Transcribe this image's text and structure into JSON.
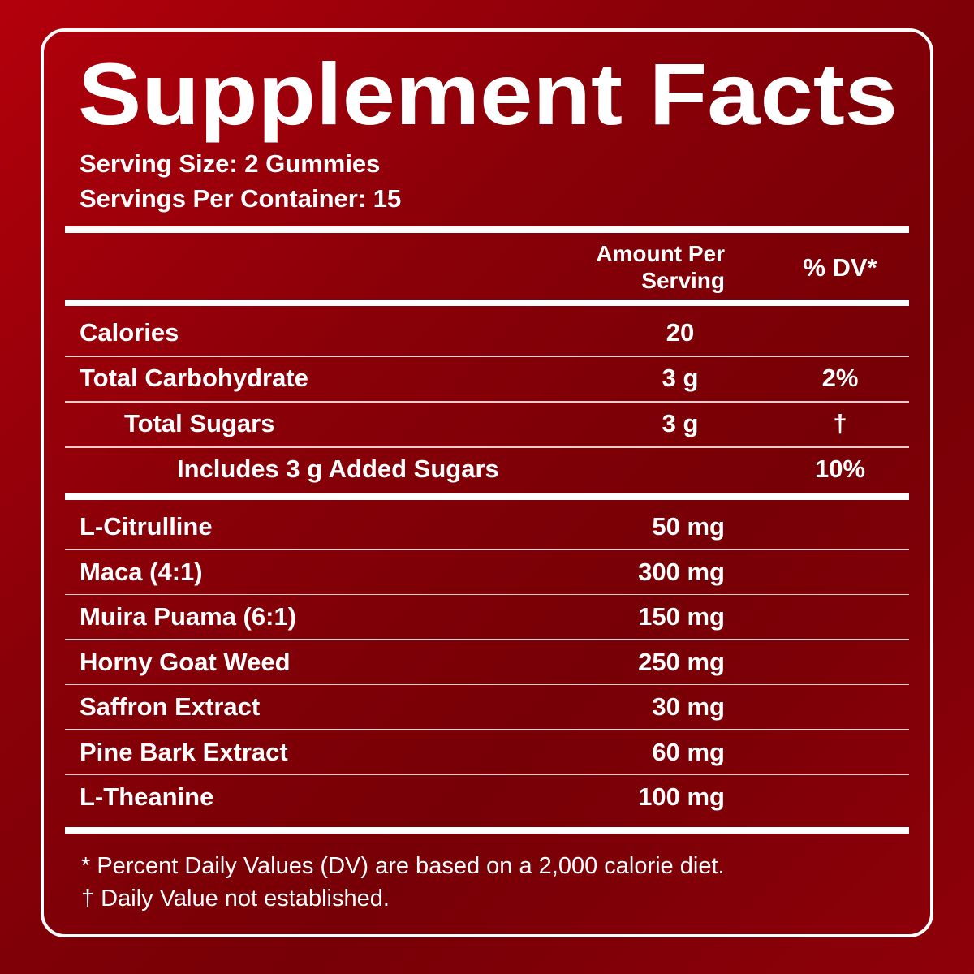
{
  "title": "Supplement Facts",
  "serving_size": "Serving Size: 2 Gummies",
  "servings_per_container": "Servings Per Container: 15",
  "header": {
    "amount": [
      "Amount Per",
      "Serving"
    ],
    "dv": "% DV*"
  },
  "nutrients": [
    {
      "name": "Calories",
      "amount": "20"
    },
    {
      "name": "Total Carbohydrate",
      "amount": "3 g",
      "dv": "2%"
    },
    {
      "name": "Total Sugars",
      "amount": "3 g",
      "dv": "†"
    },
    {
      "name": "Includes 3 g Added Sugars",
      "dv": "10%"
    }
  ],
  "ingredients": [
    {
      "name": "L-Citrulline",
      "amount": "50 mg"
    },
    {
      "name": "Maca (4:1)",
      "amount": "300 mg"
    },
    {
      "name": "Muira Puama (6:1)",
      "amount": "150 mg"
    },
    {
      "name": "Horny Goat Weed",
      "amount": "250 mg"
    },
    {
      "name": "Saffron Extract",
      "amount": "30 mg"
    },
    {
      "name": "Pine Bark Extract",
      "amount": "60 mg"
    },
    {
      "name": "L-Theanine",
      "amount": "100 mg"
    }
  ],
  "footnotes": [
    "* Percent Daily Values (DV) are based on a 2,000 calorie diet.",
    "† Daily Value not established."
  ]
}
